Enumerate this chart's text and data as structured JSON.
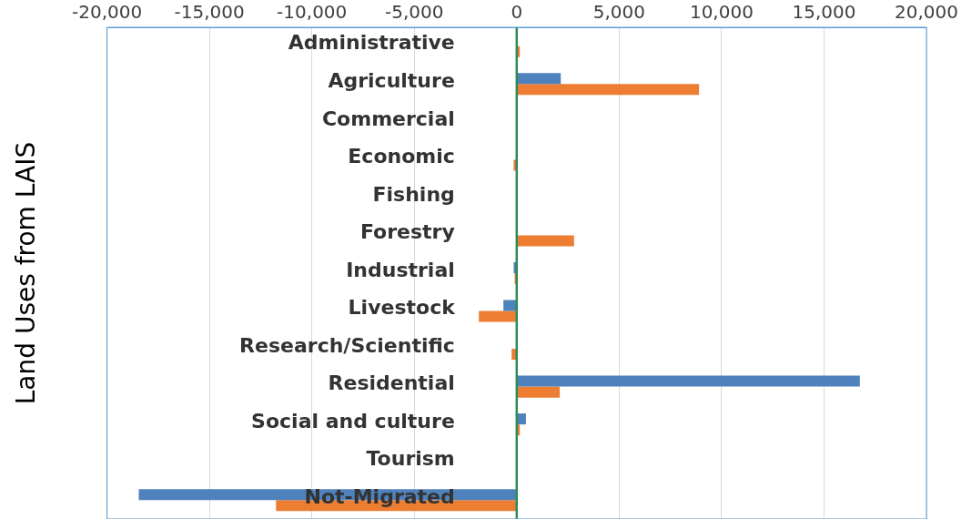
{
  "chart_data": {
    "type": "bar",
    "orientation": "horizontal",
    "ylabel": "Land Uses from LAIS",
    "categories": [
      "Administrative",
      "Agriculture",
      "Commercial",
      "Economic",
      "Fishing",
      "Forestry",
      "Industrial",
      "Livestock",
      "Research/Scientific",
      "Residential",
      "Social and culture",
      "Tourism",
      "Not-Migrated"
    ],
    "series": [
      {
        "color": "#4f81bd",
        "values": [
          0,
          2150,
          0,
          0,
          0,
          0,
          -150,
          -650,
          0,
          16750,
          450,
          30,
          -18450
        ]
      },
      {
        "color": "#ed7d31",
        "values": [
          150,
          8900,
          0,
          -150,
          0,
          2800,
          -100,
          -1850,
          -250,
          2100,
          150,
          null,
          -11750
        ]
      }
    ],
    "xlim": [
      -20000,
      20000
    ],
    "xticks": [
      {
        "value": -20000,
        "label": "-20,000"
      },
      {
        "value": -15000,
        "label": "-15,000"
      },
      {
        "value": -10000,
        "label": "-10,000"
      },
      {
        "value": -5000,
        "label": "-5,000"
      },
      {
        "value": 0,
        "label": "0"
      },
      {
        "value": 5000,
        "label": "5,000"
      },
      {
        "value": 10000,
        "label": "10,000"
      },
      {
        "value": 15000,
        "label": "15,000"
      },
      {
        "value": 20000,
        "label": "20,000"
      }
    ],
    "ref_lines": [
      {
        "axis": "x",
        "value": 0,
        "color": "#2e8b57"
      }
    ],
    "grid": "x",
    "legend": false
  }
}
